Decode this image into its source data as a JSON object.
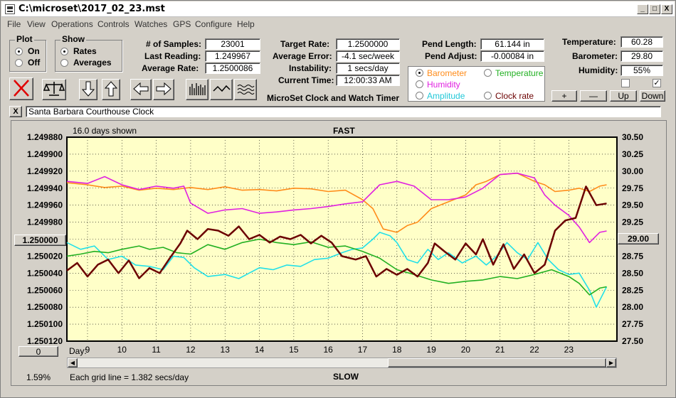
{
  "window": {
    "title": "C:\\microset\\2017_02_23.mst",
    "min": "_",
    "max": "□",
    "close": "X"
  },
  "menu": [
    "File",
    "View",
    "Operations",
    "Controls",
    "Watches",
    "GPS",
    "Configure",
    "Help"
  ],
  "plot": {
    "title": "Plot",
    "on": "On",
    "off": "Off"
  },
  "show": {
    "title": "Show",
    "rates": "Rates",
    "averages": "Averages"
  },
  "stats": {
    "samples_label": "# of Samples:",
    "samples": "23001",
    "last_label": "Last Reading:",
    "last": "1.249967",
    "avg_label": "Average Rate:",
    "avg": "1.2500086"
  },
  "rate": {
    "target_label": "Target Rate:",
    "target": "1.2500000",
    "err_label": "Average Error:",
    "err": "-4.1 sec/week",
    "inst_label": "Instability:",
    "inst": "1 secs/day",
    "time_label": "Current Time:",
    "time": "12:00:33 AM"
  },
  "app_name": "MicroSet Clock and Watch Timer",
  "pend": {
    "len_label": "Pend Length:",
    "len": "61.144 in",
    "adj_label": "Pend Adjust:",
    "adj": "-0.00084 in"
  },
  "env": {
    "temp_label": "Temperature:",
    "temp": "60.28",
    "baro_label": "Barometer:",
    "baro": "29.80",
    "hum_label": "Humidity:",
    "hum": "55%"
  },
  "sensors": {
    "barometer": "Barometer",
    "temperature": "Temperature",
    "humidity": "Humidity",
    "amplitude": "Amplitude",
    "clockrate": "Clock rate"
  },
  "adjust": {
    "plus": "+",
    "minus": "—",
    "up": "Up",
    "down": "Down"
  },
  "clock_name": "Santa Barbara Courthouse Clock",
  "close_x": "X",
  "chart_data": {
    "type": "line",
    "days_shown": "16.0 days shown",
    "top_label": "FAST",
    "bottom_label": "SLOW",
    "left_ticks": [
      "1.249880",
      "1.249900",
      "1.249920",
      "1.249940",
      "1.249960",
      "1.249980",
      "1.250000",
      "1.250020",
      "1.250040",
      "1.250060",
      "1.250080",
      "1.250100",
      "1.250120"
    ],
    "right_ticks": [
      "30.50",
      "30.25",
      "30.00",
      "29.75",
      "29.50",
      "29.25",
      "29.00",
      "28.75",
      "28.50",
      "28.25",
      "28.00",
      "27.75",
      "27.50"
    ],
    "x_label": "Day:",
    "x_ticks": [
      "9",
      "10",
      "11",
      "12",
      "13",
      "14",
      "15",
      "16",
      "17",
      "18",
      "19",
      "20",
      "21",
      "22",
      "23"
    ],
    "xlim": [
      8.4,
      24.4
    ],
    "ylim_left": [
      1.24988,
      1.25012
    ],
    "ylim_right": [
      27.5,
      30.5
    ],
    "left_btn": "1.250000",
    "right_btn": "29.00",
    "zero_btn": "0",
    "pct": "1.59%",
    "grid_note": "Each grid line = 1.382 secs/day",
    "colors": {
      "rate": "#6b0000",
      "barometer": "#ff8c1a",
      "humidity": "#e020e0",
      "amplitude": "#22e0e8",
      "temperature": "#22b022",
      "bg": "#ffffc8"
    },
    "series": [
      {
        "name": "Clock rate",
        "points": [
          [
            8.4,
            1.250037
          ],
          [
            8.7,
            1.250028
          ],
          [
            9.0,
            1.250044
          ],
          [
            9.3,
            1.25003
          ],
          [
            9.6,
            1.250024
          ],
          [
            9.9,
            1.25004
          ],
          [
            10.2,
            1.250025
          ],
          [
            10.5,
            1.250046
          ],
          [
            10.8,
            1.250034
          ],
          [
            11.1,
            1.25004
          ],
          [
            11.4,
            1.250022
          ],
          [
            11.7,
            1.250005
          ],
          [
            11.9,
            1.24999
          ],
          [
            12.2,
            1.25
          ],
          [
            12.5,
            1.249988
          ],
          [
            12.8,
            1.24999
          ],
          [
            13.1,
            1.249996
          ],
          [
            13.4,
            1.249985
          ],
          [
            13.7,
            1.25
          ],
          [
            14.0,
            1.249995
          ],
          [
            14.3,
            1.250004
          ],
          [
            14.6,
            1.249997
          ],
          [
            14.9,
            1.25
          ],
          [
            15.2,
            1.249995
          ],
          [
            15.5,
            1.250005
          ],
          [
            15.8,
            1.249996
          ],
          [
            16.1,
            1.250004
          ],
          [
            16.4,
            1.25002
          ],
          [
            16.8,
            1.250024
          ],
          [
            17.1,
            1.25002
          ],
          [
            17.4,
            1.250044
          ],
          [
            17.7,
            1.250035
          ],
          [
            18.0,
            1.250042
          ],
          [
            18.3,
            1.250035
          ],
          [
            18.6,
            1.250044
          ],
          [
            18.9,
            1.250028
          ],
          [
            19.1,
            1.250005
          ],
          [
            19.4,
            1.250015
          ],
          [
            19.7,
            1.250024
          ],
          [
            20.0,
            1.250005
          ],
          [
            20.3,
            1.250018
          ],
          [
            20.5,
            1.25
          ],
          [
            20.8,
            1.25003
          ],
          [
            21.1,
            1.250006
          ],
          [
            21.4,
            1.250035
          ],
          [
            21.7,
            1.250018
          ],
          [
            22.0,
            1.25004
          ],
          [
            22.3,
            1.25003
          ],
          [
            22.6,
            1.24999
          ],
          [
            22.9,
            1.249978
          ],
          [
            23.2,
            1.249975
          ],
          [
            23.5,
            1.249938
          ],
          [
            23.8,
            1.24996
          ],
          [
            24.1,
            1.249958
          ]
        ]
      },
      {
        "name": "Barometer",
        "points": [
          [
            8.4,
            29.83
          ],
          [
            9.0,
            29.8
          ],
          [
            9.5,
            29.76
          ],
          [
            10.0,
            29.78
          ],
          [
            10.5,
            29.72
          ],
          [
            11.0,
            29.75
          ],
          [
            11.5,
            29.73
          ],
          [
            12.0,
            29.76
          ],
          [
            12.5,
            29.73
          ],
          [
            13.0,
            29.77
          ],
          [
            13.5,
            29.72
          ],
          [
            14.0,
            29.73
          ],
          [
            14.5,
            29.71
          ],
          [
            15.0,
            29.75
          ],
          [
            15.5,
            29.74
          ],
          [
            16.0,
            29.7
          ],
          [
            16.5,
            29.72
          ],
          [
            17.0,
            29.58
          ],
          [
            17.3,
            29.45
          ],
          [
            17.6,
            29.15
          ],
          [
            18.0,
            29.1
          ],
          [
            18.3,
            29.2
          ],
          [
            18.6,
            29.25
          ],
          [
            19.0,
            29.45
          ],
          [
            19.5,
            29.55
          ],
          [
            20.0,
            29.65
          ],
          [
            20.3,
            29.8
          ],
          [
            20.6,
            29.85
          ],
          [
            21.0,
            29.95
          ],
          [
            21.5,
            29.97
          ],
          [
            22.0,
            29.85
          ],
          [
            22.3,
            29.8
          ],
          [
            22.6,
            29.7
          ],
          [
            23.0,
            29.72
          ],
          [
            23.3,
            29.75
          ],
          [
            23.6,
            29.7
          ],
          [
            23.9,
            29.78
          ],
          [
            24.1,
            29.8
          ]
        ]
      },
      {
        "name": "Humidity",
        "points": [
          [
            8.4,
            29.85
          ],
          [
            9.0,
            29.82
          ],
          [
            9.5,
            29.92
          ],
          [
            10.0,
            29.8
          ],
          [
            10.5,
            29.73
          ],
          [
            11.0,
            29.78
          ],
          [
            11.5,
            29.75
          ],
          [
            11.8,
            29.78
          ],
          [
            12.0,
            29.53
          ],
          [
            12.5,
            29.38
          ],
          [
            13.0,
            29.43
          ],
          [
            13.5,
            29.45
          ],
          [
            14.0,
            29.38
          ],
          [
            14.5,
            29.4
          ],
          [
            15.0,
            29.43
          ],
          [
            15.5,
            29.45
          ],
          [
            16.0,
            29.48
          ],
          [
            16.5,
            29.52
          ],
          [
            17.0,
            29.55
          ],
          [
            17.5,
            29.8
          ],
          [
            18.0,
            29.85
          ],
          [
            18.5,
            29.78
          ],
          [
            19.0,
            29.58
          ],
          [
            19.5,
            29.58
          ],
          [
            20.0,
            29.62
          ],
          [
            20.5,
            29.75
          ],
          [
            21.0,
            29.95
          ],
          [
            21.5,
            29.97
          ],
          [
            22.0,
            29.9
          ],
          [
            22.3,
            29.65
          ],
          [
            22.6,
            29.5
          ],
          [
            23.0,
            29.35
          ],
          [
            23.3,
            29.18
          ],
          [
            23.6,
            28.95
          ],
          [
            23.9,
            29.1
          ],
          [
            24.1,
            29.12
          ]
        ]
      },
      {
        "name": "Amplitude",
        "points": [
          [
            8.4,
            28.95
          ],
          [
            8.8,
            28.85
          ],
          [
            9.2,
            28.9
          ],
          [
            9.6,
            28.7
          ],
          [
            10.0,
            28.75
          ],
          [
            10.4,
            28.62
          ],
          [
            10.8,
            28.6
          ],
          [
            11.2,
            28.55
          ],
          [
            11.5,
            28.75
          ],
          [
            11.8,
            28.73
          ],
          [
            12.1,
            28.58
          ],
          [
            12.5,
            28.45
          ],
          [
            13.0,
            28.48
          ],
          [
            13.4,
            28.42
          ],
          [
            13.7,
            28.5
          ],
          [
            14.0,
            28.58
          ],
          [
            14.4,
            28.55
          ],
          [
            14.8,
            28.62
          ],
          [
            15.2,
            28.6
          ],
          [
            15.6,
            28.7
          ],
          [
            16.0,
            28.72
          ],
          [
            16.4,
            28.8
          ],
          [
            16.7,
            28.85
          ],
          [
            17.0,
            28.87
          ],
          [
            17.3,
            29.0
          ],
          [
            17.5,
            29.1
          ],
          [
            17.8,
            29.05
          ],
          [
            18.0,
            28.95
          ],
          [
            18.3,
            28.7
          ],
          [
            18.6,
            28.65
          ],
          [
            18.9,
            28.85
          ],
          [
            19.2,
            28.7
          ],
          [
            19.5,
            28.8
          ],
          [
            19.9,
            28.65
          ],
          [
            20.3,
            28.75
          ],
          [
            20.6,
            28.62
          ],
          [
            20.9,
            28.75
          ],
          [
            21.2,
            28.95
          ],
          [
            21.5,
            28.8
          ],
          [
            21.8,
            28.7
          ],
          [
            22.1,
            28.95
          ],
          [
            22.4,
            28.7
          ],
          [
            22.7,
            28.55
          ],
          [
            23.0,
            28.48
          ],
          [
            23.3,
            28.5
          ],
          [
            23.6,
            28.25
          ],
          [
            23.8,
            28.0
          ],
          [
            24.1,
            28.3
          ]
        ]
      },
      {
        "name": "Temperature",
        "points": [
          [
            8.4,
            28.75
          ],
          [
            8.8,
            28.78
          ],
          [
            9.2,
            28.82
          ],
          [
            9.6,
            28.8
          ],
          [
            10.0,
            28.85
          ],
          [
            10.5,
            28.9
          ],
          [
            10.8,
            28.85
          ],
          [
            11.2,
            28.88
          ],
          [
            11.6,
            28.8
          ],
          [
            12.0,
            28.78
          ],
          [
            12.5,
            28.92
          ],
          [
            13.0,
            28.85
          ],
          [
            13.5,
            28.95
          ],
          [
            14.0,
            29.0
          ],
          [
            14.5,
            28.95
          ],
          [
            15.0,
            28.92
          ],
          [
            15.5,
            28.96
          ],
          [
            16.0,
            28.88
          ],
          [
            16.5,
            28.9
          ],
          [
            17.0,
            28.82
          ],
          [
            17.5,
            28.72
          ],
          [
            18.0,
            28.55
          ],
          [
            18.5,
            28.48
          ],
          [
            19.0,
            28.4
          ],
          [
            19.5,
            28.35
          ],
          [
            20.0,
            28.38
          ],
          [
            20.5,
            28.4
          ],
          [
            21.0,
            28.45
          ],
          [
            21.5,
            28.42
          ],
          [
            22.0,
            28.48
          ],
          [
            22.5,
            28.55
          ],
          [
            23.0,
            28.45
          ],
          [
            23.3,
            28.35
          ],
          [
            23.6,
            28.18
          ],
          [
            23.9,
            28.28
          ],
          [
            24.1,
            28.3
          ]
        ]
      }
    ]
  }
}
